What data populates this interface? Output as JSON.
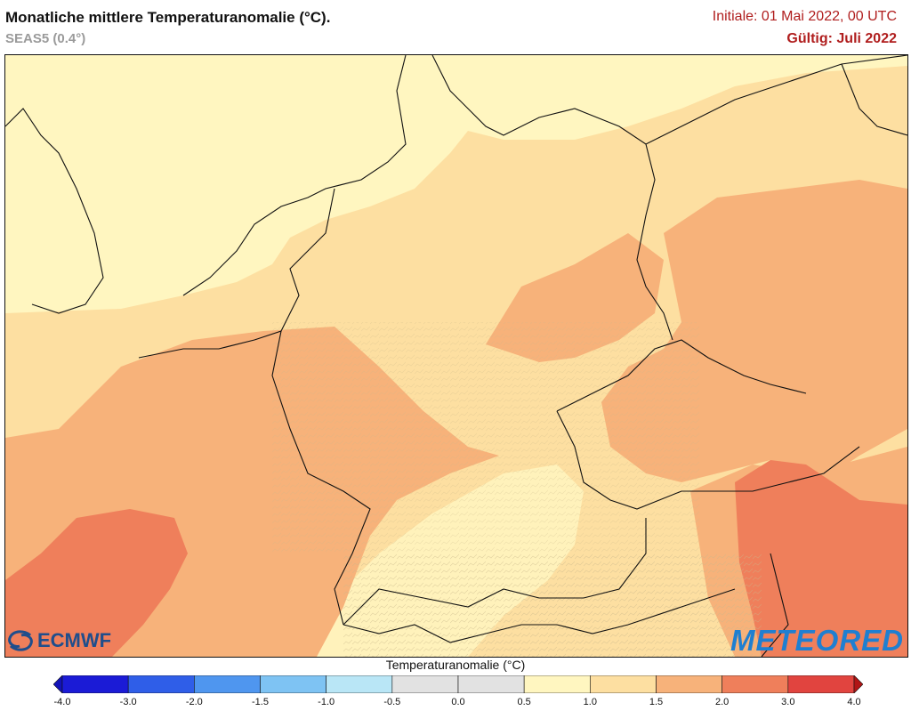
{
  "header": {
    "title": "Monatliche mittlere Temperaturanomalie (°C).",
    "subtitle": "SEAS5 (0.4°)",
    "initial": "Initiale: 01 Mai 2022, 00 UTC",
    "valid": "Gültig: Juli 2022"
  },
  "logos": {
    "left": "ECMWF",
    "right": "METEORED"
  },
  "legend": {
    "title": "Temperaturanomalie (°C)",
    "ticks": [
      "-4.0",
      "-3.0",
      "-2.0",
      "-1.5",
      "-1.0",
      "-0.5",
      "0.0",
      "0.5",
      "1.0",
      "1.5",
      "2.0",
      "3.0",
      "4.0"
    ],
    "colors": [
      "#1b1bd6",
      "#2f5ee8",
      "#4f96ef",
      "#7ec3f3",
      "#b9e6f6",
      "#e2e2e2",
      "#e2e2e2",
      "#fff6c0",
      "#fddfa1",
      "#f7b27a",
      "#ef7f5b",
      "#e1443f"
    ],
    "low_arrow_color": "#1212b8",
    "high_arrow_color": "#b01515"
  },
  "map": {
    "colors": {
      "band_0_5_1_0": "#fff6c0",
      "band_1_0_1_5": "#fddfa1",
      "band_1_5_2_0": "#f7b27a",
      "band_2_0_3_0": "#ef7f5b",
      "border": "#111111"
    }
  }
}
